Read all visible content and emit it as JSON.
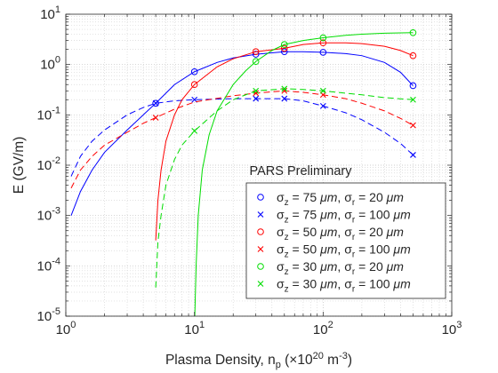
{
  "chart_data": {
    "type": "line",
    "xlabel": "Plasma Density, n_p (×10^20 m^-3)",
    "ylabel": "E (GV/m)",
    "x_scale": "log",
    "y_scale": "log",
    "xlim": [
      1,
      1000
    ],
    "ylim": [
      1e-05,
      10
    ],
    "grid": true,
    "x_ticks": [
      {
        "base": "10",
        "exp": "0",
        "value": 1
      },
      {
        "base": "10",
        "exp": "1",
        "value": 10
      },
      {
        "base": "10",
        "exp": "2",
        "value": 100
      },
      {
        "base": "10",
        "exp": "3",
        "value": 1000
      }
    ],
    "y_ticks": [
      {
        "base": "10",
        "exp": "-5",
        "value": 1e-05
      },
      {
        "base": "10",
        "exp": "-4",
        "value": 0.0001
      },
      {
        "base": "10",
        "exp": "-3",
        "value": 0.001
      },
      {
        "base": "10",
        "exp": "-2",
        "value": 0.01
      },
      {
        "base": "10",
        "exp": "-1",
        "value": 0.1
      },
      {
        "base": "10",
        "exp": "0",
        "value": 1
      },
      {
        "base": "10",
        "exp": "1",
        "value": 10
      }
    ],
    "legend": {
      "title": "PARS Preliminary",
      "placement": "bottom-right",
      "entries": [
        {
          "series": 0,
          "sz": "75",
          "sr": "20"
        },
        {
          "series": 1,
          "sz": "75",
          "sr": "100"
        },
        {
          "series": 2,
          "sz": "50",
          "sr": "20"
        },
        {
          "series": 3,
          "sz": "50",
          "sr": "100"
        },
        {
          "series": 4,
          "sz": "30",
          "sr": "20"
        },
        {
          "series": 5,
          "sz": "30",
          "sr": "100"
        }
      ]
    },
    "series": [
      {
        "color": "#0000ff",
        "marker": "circle",
        "line": "solid",
        "points": [
          [
            5,
            0.17
          ],
          [
            10,
            0.72
          ],
          [
            30,
            1.6
          ],
          [
            50,
            1.8
          ],
          [
            100,
            1.75
          ],
          [
            500,
            0.38
          ]
        ],
        "curve": [
          [
            1.1,
            0.001
          ],
          [
            1.3,
            0.003
          ],
          [
            1.6,
            0.008
          ],
          [
            2,
            0.018
          ],
          [
            3,
            0.05
          ],
          [
            4,
            0.1
          ],
          [
            5,
            0.17
          ],
          [
            7,
            0.4
          ],
          [
            10,
            0.72
          ],
          [
            15,
            1.1
          ],
          [
            20,
            1.35
          ],
          [
            30,
            1.6
          ],
          [
            50,
            1.8
          ],
          [
            70,
            1.8
          ],
          [
            100,
            1.75
          ],
          [
            150,
            1.65
          ],
          [
            200,
            1.5
          ],
          [
            300,
            1.1
          ],
          [
            400,
            0.7
          ],
          [
            500,
            0.38
          ]
        ]
      },
      {
        "color": "#0000ff",
        "marker": "x",
        "line": "dashed",
        "points": [
          [
            5,
            0.17
          ],
          [
            10,
            0.2
          ],
          [
            30,
            0.21
          ],
          [
            50,
            0.21
          ],
          [
            100,
            0.15
          ],
          [
            500,
            0.016
          ]
        ],
        "curve": [
          [
            1.1,
            0.006
          ],
          [
            1.3,
            0.015
          ],
          [
            1.6,
            0.03
          ],
          [
            2,
            0.05
          ],
          [
            3,
            0.1
          ],
          [
            4,
            0.14
          ],
          [
            5,
            0.17
          ],
          [
            7,
            0.19
          ],
          [
            10,
            0.2
          ],
          [
            20,
            0.21
          ],
          [
            30,
            0.21
          ],
          [
            50,
            0.21
          ],
          [
            70,
            0.19
          ],
          [
            100,
            0.15
          ],
          [
            150,
            0.11
          ],
          [
            200,
            0.08
          ],
          [
            300,
            0.045
          ],
          [
            400,
            0.027
          ],
          [
            500,
            0.016
          ]
        ]
      },
      {
        "color": "#ff0000",
        "marker": "circle",
        "line": "solid",
        "points": [
          [
            10,
            0.4
          ],
          [
            30,
            1.8
          ],
          [
            50,
            2.1
          ],
          [
            100,
            2.7
          ],
          [
            500,
            1.5
          ]
        ],
        "curve": [
          [
            5,
            0.00032
          ],
          [
            5.2,
            0.002
          ],
          [
            5.5,
            0.008
          ],
          [
            6,
            0.03
          ],
          [
            7,
            0.1
          ],
          [
            8,
            0.2
          ],
          [
            10,
            0.4
          ],
          [
            15,
            0.9
          ],
          [
            20,
            1.3
          ],
          [
            30,
            1.8
          ],
          [
            50,
            2.1
          ],
          [
            70,
            2.5
          ],
          [
            100,
            2.7
          ],
          [
            150,
            2.7
          ],
          [
            200,
            2.6
          ],
          [
            300,
            2.3
          ],
          [
            400,
            1.9
          ],
          [
            500,
            1.5
          ]
        ]
      },
      {
        "color": "#ff0000",
        "marker": "x",
        "line": "dashed",
        "points": [
          [
            5,
            0.088
          ],
          [
            30,
            0.27
          ],
          [
            50,
            0.3
          ],
          [
            100,
            0.25
          ],
          [
            500,
            0.062
          ]
        ],
        "curve": [
          [
            1.1,
            0.0035
          ],
          [
            1.3,
            0.008
          ],
          [
            1.6,
            0.015
          ],
          [
            2,
            0.025
          ],
          [
            3,
            0.045
          ],
          [
            4,
            0.068
          ],
          [
            5,
            0.088
          ],
          [
            7,
            0.13
          ],
          [
            10,
            0.18
          ],
          [
            20,
            0.24
          ],
          [
            30,
            0.27
          ],
          [
            50,
            0.3
          ],
          [
            70,
            0.28
          ],
          [
            100,
            0.25
          ],
          [
            150,
            0.21
          ],
          [
            200,
            0.17
          ],
          [
            300,
            0.12
          ],
          [
            400,
            0.085
          ],
          [
            500,
            0.062
          ]
        ]
      },
      {
        "color": "#00dd00",
        "marker": "circle",
        "line": "solid",
        "points": [
          [
            30,
            1.15
          ],
          [
            50,
            2.5
          ],
          [
            100,
            3.4
          ],
          [
            500,
            4.3
          ]
        ],
        "curve": [
          [
            10,
            5.5e-06
          ],
          [
            10.3,
            0.0001
          ],
          [
            10.7,
            0.001
          ],
          [
            11.5,
            0.008
          ],
          [
            13,
            0.04
          ],
          [
            15,
            0.12
          ],
          [
            20,
            0.4
          ],
          [
            25,
            0.75
          ],
          [
            30,
            1.15
          ],
          [
            40,
            1.9
          ],
          [
            50,
            2.5
          ],
          [
            70,
            3
          ],
          [
            100,
            3.4
          ],
          [
            150,
            3.8
          ],
          [
            200,
            4
          ],
          [
            300,
            4.2
          ],
          [
            500,
            4.3
          ]
        ]
      },
      {
        "color": "#00dd00",
        "marker": "x",
        "line": "dashed",
        "points": [
          [
            10,
            0.048
          ],
          [
            30,
            0.3
          ],
          [
            50,
            0.33
          ],
          [
            100,
            0.3
          ],
          [
            500,
            0.2
          ]
        ],
        "curve": [
          [
            5,
            3.7e-05
          ],
          [
            5.2,
            0.0003
          ],
          [
            5.5,
            0.001
          ],
          [
            6,
            0.004
          ],
          [
            7,
            0.013
          ],
          [
            8,
            0.025
          ],
          [
            10,
            0.048
          ],
          [
            15,
            0.12
          ],
          [
            20,
            0.2
          ],
          [
            30,
            0.3
          ],
          [
            50,
            0.33
          ],
          [
            70,
            0.32
          ],
          [
            100,
            0.3
          ],
          [
            200,
            0.25
          ],
          [
            300,
            0.22
          ],
          [
            500,
            0.2
          ]
        ]
      }
    ]
  }
}
